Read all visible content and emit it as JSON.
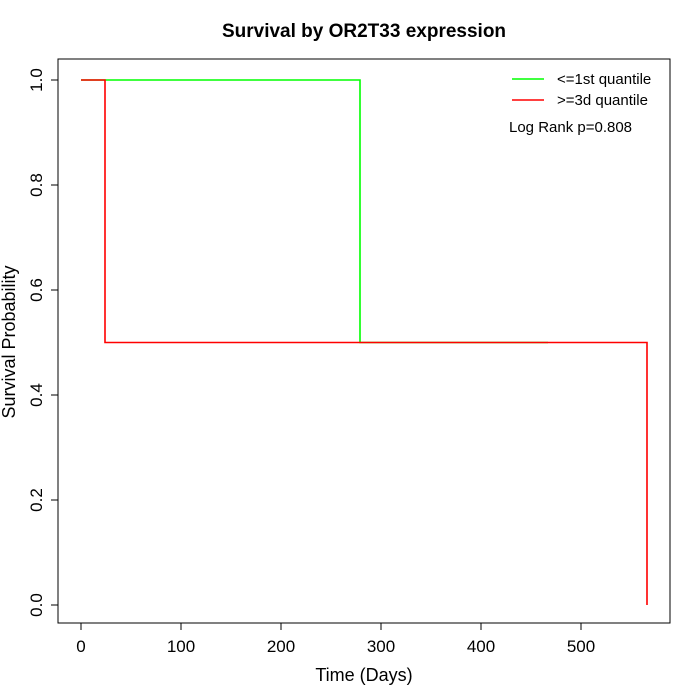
{
  "chart_data": {
    "type": "line",
    "subtype": "kaplan-meier-step",
    "title": "Survival by OR2T33 expression",
    "xlabel": "Time (Days)",
    "ylabel": "Survival Probability",
    "xlim": [
      0,
      567
    ],
    "ylim": [
      0,
      1
    ],
    "xticks": [
      0,
      100,
      200,
      300,
      400,
      500
    ],
    "xtick_labels": [
      "0",
      "100",
      "200",
      "300",
      "400",
      "500"
    ],
    "yticks": [
      0,
      0.2,
      0.4,
      0.6,
      0.8,
      1
    ],
    "ytick_labels": [
      "0.0",
      "0.2",
      "0.4",
      "0.6",
      "0.8",
      "1.0"
    ],
    "grid": false,
    "legend_position": "top-right",
    "annotation": "Log Rank p=0.808",
    "series": [
      {
        "name": "<=1st quantile",
        "color": "#00ff00",
        "x": [
          0,
          279,
          279,
          467
        ],
        "y": [
          1.0,
          1.0,
          0.5,
          0.5
        ]
      },
      {
        "name": ">=3d quantile",
        "color": "#ff0000",
        "x": [
          0,
          24,
          24,
          566,
          566
        ],
        "y": [
          1.0,
          1.0,
          0.5,
          0.5,
          0.0
        ]
      }
    ]
  }
}
